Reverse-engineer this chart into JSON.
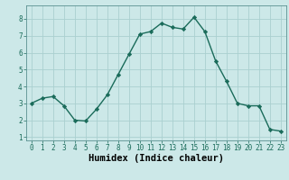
{
  "x": [
    0,
    1,
    2,
    3,
    4,
    5,
    6,
    7,
    8,
    9,
    10,
    11,
    12,
    13,
    14,
    15,
    16,
    17,
    18,
    19,
    20,
    21,
    22,
    23
  ],
  "y": [
    3.0,
    3.3,
    3.4,
    2.85,
    2.0,
    1.95,
    2.65,
    3.5,
    4.7,
    5.9,
    7.1,
    7.25,
    7.75,
    7.5,
    7.4,
    8.1,
    7.25,
    5.5,
    4.3,
    3.0,
    2.85,
    2.85,
    1.45,
    1.35
  ],
  "line_color": "#1a6b5a",
  "marker": "D",
  "marker_size": 2.2,
  "linewidth": 1.0,
  "xlabel": "Humidex (Indice chaleur)",
  "xlim": [
    -0.5,
    23.5
  ],
  "ylim": [
    0.8,
    8.8
  ],
  "yticks": [
    1,
    2,
    3,
    4,
    5,
    6,
    7,
    8
  ],
  "xticks": [
    0,
    1,
    2,
    3,
    4,
    5,
    6,
    7,
    8,
    9,
    10,
    11,
    12,
    13,
    14,
    15,
    16,
    17,
    18,
    19,
    20,
    21,
    22,
    23
  ],
  "bg_color": "#cce8e8",
  "grid_color": "#aad0d0",
  "tick_labelsize": 5.5,
  "xlabel_fontsize": 7.5,
  "xlabel_fontweight": "bold"
}
